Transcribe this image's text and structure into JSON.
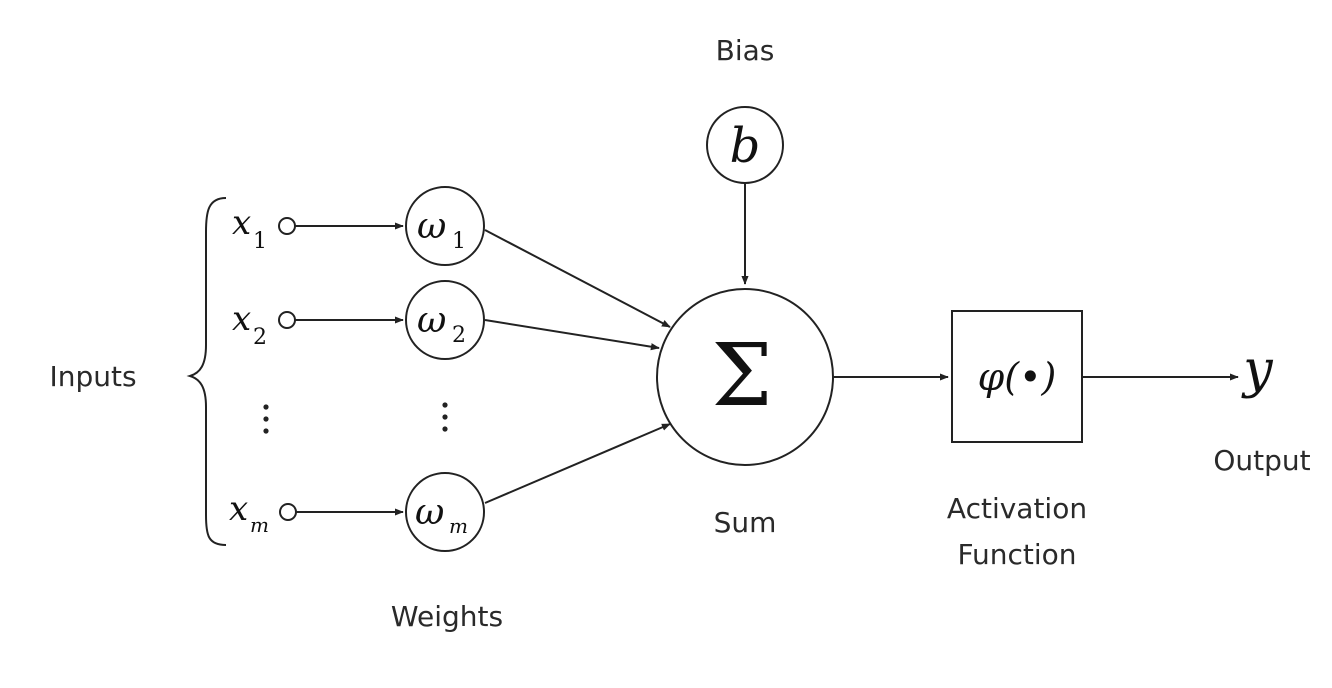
{
  "labels": {
    "bias": "Bias",
    "inputs": "Inputs",
    "weights": "Weights",
    "sum": "Sum",
    "activation_line1": "Activation",
    "activation_line2": "Function",
    "output": "Output"
  },
  "symbols": {
    "bias": "b",
    "sum": "Σ",
    "activation": "φ(•)",
    "output": "y",
    "input_var": "x",
    "weight_var": "ω"
  },
  "inputs": [
    {
      "sub": "1"
    },
    {
      "sub": "2"
    },
    {
      "sub": "m"
    }
  ],
  "weights": [
    {
      "sub": "1"
    },
    {
      "sub": "2"
    },
    {
      "sub": "m"
    }
  ]
}
